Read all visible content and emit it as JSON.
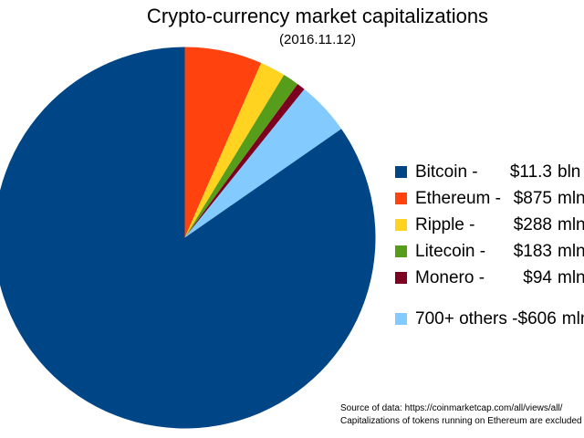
{
  "title": "Crypto-currency market capitalizations",
  "subtitle": "(2016.11.12)",
  "source_note": {
    "line1": "Source of data: https://coinmarketcap.com/all/views/all/",
    "line2": "Capitalizations of tokens running on Ethereum are excluded"
  },
  "chart_data": {
    "type": "pie",
    "title": "Crypto-currency market capitalizations",
    "subtitle": "(2016.11.12)",
    "legend_position": "right",
    "start_angle_deg": 0,
    "direction": "clockwise",
    "total_mln_usd": 13346,
    "draw_order": [
      1,
      2,
      3,
      4,
      5,
      0
    ],
    "slices": [
      {
        "label": "Bitcoin",
        "legend_label": "Bitcoin -",
        "value_text": "$11.3",
        "unit": "bln",
        "value_mln_usd": 11300,
        "color": "#004586"
      },
      {
        "label": "Ethereum",
        "legend_label": "Ethereum -",
        "value_text": "$875",
        "unit": "mln",
        "value_mln_usd": 875,
        "color": "#FF420E"
      },
      {
        "label": "Ripple",
        "legend_label": "Ripple -",
        "value_text": "$288",
        "unit": "mln",
        "value_mln_usd": 288,
        "color": "#FFD320"
      },
      {
        "label": "Litecoin",
        "legend_label": "Litecoin -",
        "value_text": "$183",
        "unit": "mln",
        "value_mln_usd": 183,
        "color": "#579D1C"
      },
      {
        "label": "Monero",
        "legend_label": "Monero -",
        "value_text": "$94",
        "unit": "mln",
        "value_mln_usd": 94,
        "color": "#7E0021"
      },
      {
        "label": "700+ others",
        "legend_label": "700+ others -",
        "value_text": "$606",
        "unit": "mln",
        "value_mln_usd": 606,
        "color": "#83CAFF"
      }
    ]
  }
}
